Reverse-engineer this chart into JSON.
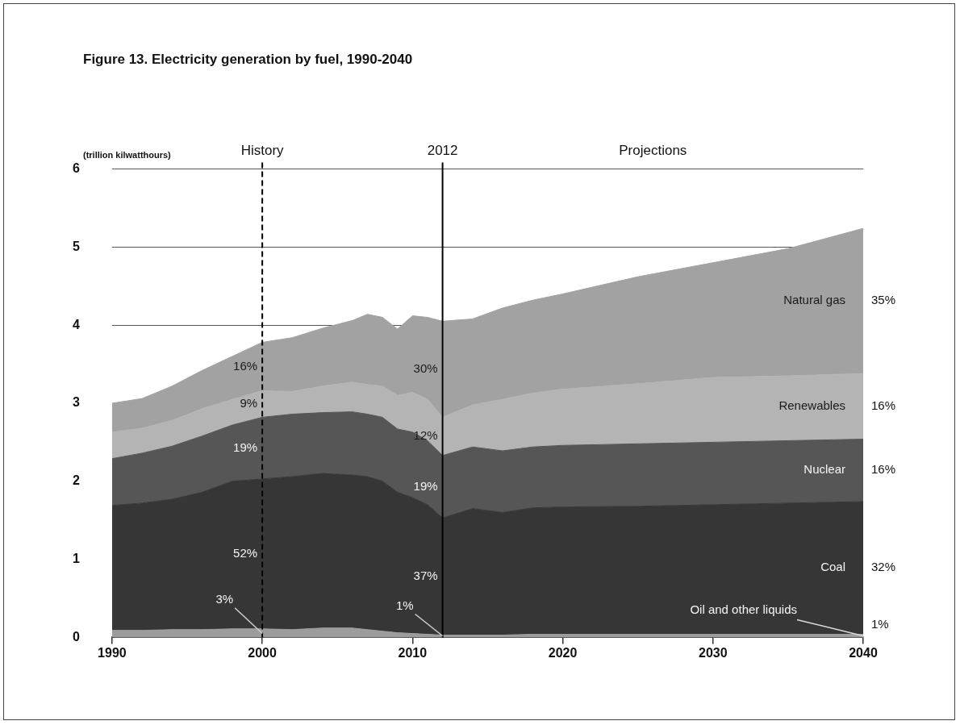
{
  "chart_data": {
    "type": "area",
    "title": "Figure 13. Electricity generation by fuel, 1990-2040",
    "ylabel": "(trillion kilwatthours)",
    "stacked": true,
    "grid": "y",
    "x": [
      1990,
      1992,
      1994,
      1996,
      1998,
      2000,
      2002,
      2004,
      2006,
      2007,
      2008,
      2009,
      2010,
      2011,
      2012,
      2014,
      2016,
      2018,
      2020,
      2025,
      2030,
      2035,
      2040
    ],
    "xlim": [
      1990,
      2040
    ],
    "xticks": [
      1990,
      2000,
      2010,
      2020,
      2030,
      2040
    ],
    "ylim": [
      0,
      6
    ],
    "yticks": [
      0,
      1,
      2,
      3,
      4,
      5,
      6
    ],
    "series": [
      {
        "name": "Oil and other liquids",
        "color": "#9c9c9c",
        "values": [
          0.09,
          0.09,
          0.1,
          0.1,
          0.11,
          0.11,
          0.1,
          0.12,
          0.12,
          0.1,
          0.08,
          0.06,
          0.05,
          0.04,
          0.03,
          0.03,
          0.03,
          0.04,
          0.04,
          0.04,
          0.04,
          0.04,
          0.04
        ]
      },
      {
        "name": "Coal",
        "color": "#363636",
        "values": [
          1.6,
          1.63,
          1.67,
          1.76,
          1.89,
          1.92,
          1.96,
          1.98,
          1.96,
          1.96,
          1.92,
          1.8,
          1.74,
          1.66,
          1.5,
          1.62,
          1.57,
          1.62,
          1.63,
          1.64,
          1.66,
          1.68,
          1.7
        ]
      },
      {
        "name": "Nuclear",
        "color": "#565656",
        "values": [
          0.6,
          0.64,
          0.68,
          0.72,
          0.72,
          0.79,
          0.8,
          0.78,
          0.81,
          0.8,
          0.82,
          0.81,
          0.84,
          0.82,
          0.8,
          0.79,
          0.79,
          0.78,
          0.79,
          0.8,
          0.8,
          0.8,
          0.8
        ]
      },
      {
        "name": "Renewables",
        "color": "#b4b4b4",
        "values": [
          0.34,
          0.32,
          0.33,
          0.35,
          0.33,
          0.34,
          0.29,
          0.34,
          0.38,
          0.38,
          0.4,
          0.43,
          0.51,
          0.53,
          0.49,
          0.54,
          0.66,
          0.69,
          0.72,
          0.77,
          0.83,
          0.83,
          0.84
        ]
      },
      {
        "name": "Natural gas",
        "color": "#a2a2a2",
        "values": [
          0.37,
          0.38,
          0.44,
          0.49,
          0.55,
          0.62,
          0.69,
          0.74,
          0.79,
          0.9,
          0.88,
          0.85,
          0.98,
          1.05,
          1.23,
          1.1,
          1.17,
          1.19,
          1.22,
          1.37,
          1.47,
          1.63,
          1.86
        ]
      }
    ],
    "ref_lines": [
      {
        "axis": "x",
        "value": 2000,
        "label": "History",
        "line_style": "dashed",
        "color": "#000000"
      },
      {
        "axis": "x",
        "value": 2012,
        "label": "2012",
        "color": "#000000"
      }
    ],
    "annotations": [
      "Projections",
      "16%",
      "9%",
      "19%",
      "52%",
      {
        "text": "3%",
        "x": 2000,
        "y": 0.05
      },
      "30%",
      "12%",
      "19%",
      "37%",
      {
        "text": "1%",
        "x": 2012,
        "y": 0.02
      },
      "35%",
      "16%",
      "16%",
      "32%",
      "1%"
    ]
  }
}
